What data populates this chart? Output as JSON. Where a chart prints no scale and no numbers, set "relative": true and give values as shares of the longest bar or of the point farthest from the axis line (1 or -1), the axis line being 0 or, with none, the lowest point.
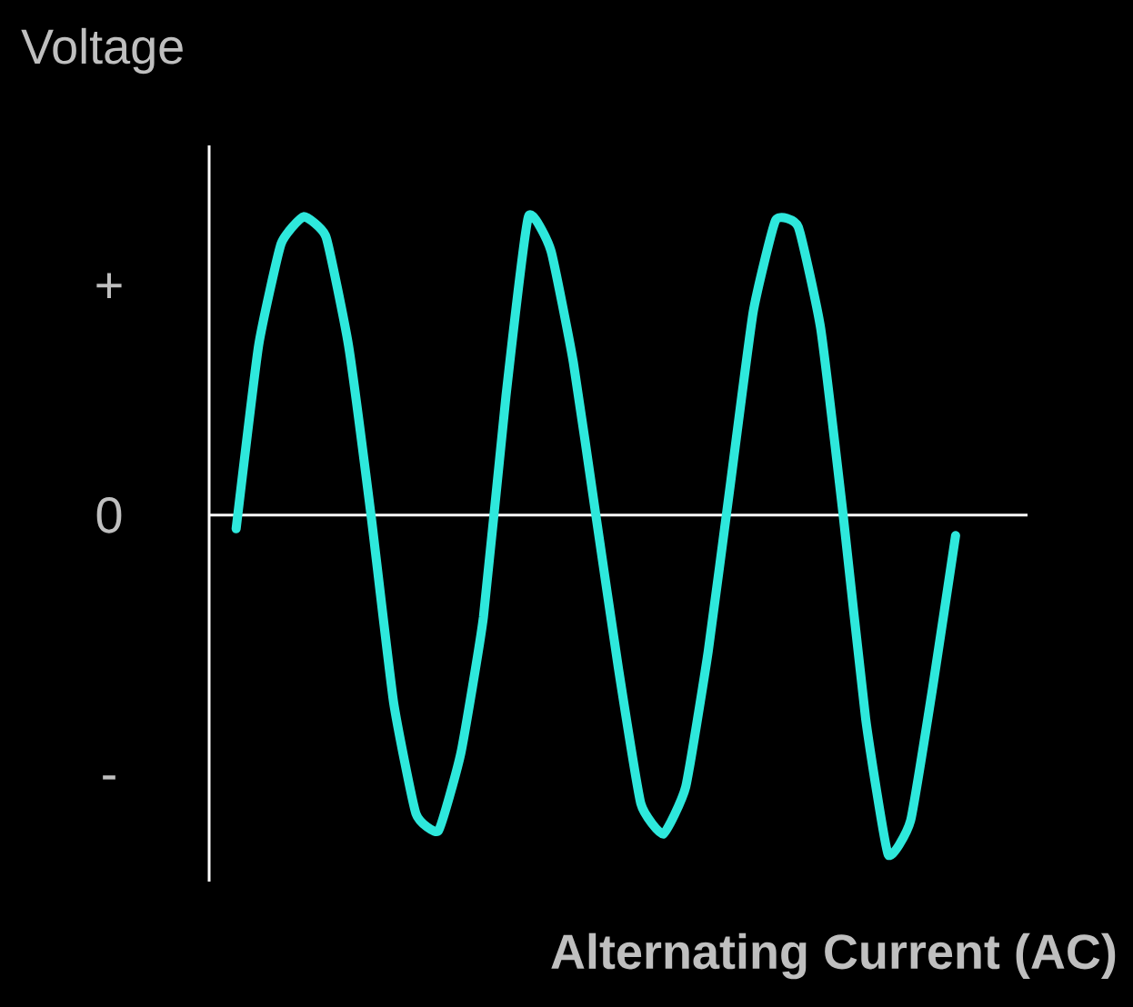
{
  "chart_data": {
    "type": "line",
    "relative": true,
    "ylabel": "Voltage",
    "xlabel": "Alternating Current (AC)",
    "annotations": [
      "+",
      "0",
      "-"
    ],
    "categories": [
      null,
      null,
      null,
      null,
      null,
      null,
      null,
      null,
      null,
      null,
      null,
      null,
      null,
      null,
      null,
      null,
      null,
      null,
      null,
      null,
      null,
      null,
      null,
      null,
      null,
      null,
      null,
      null,
      null,
      null,
      null,
      null,
      null
    ],
    "series": [
      {
        "color": "#2ee8dc",
        "values": [
          -0.04,
          0.5,
          0.8,
          0.88,
          0.82,
          0.5,
          0.0,
          -0.55,
          -0.88,
          -0.93,
          -0.7,
          -0.3,
          0.35,
          0.88,
          0.78,
          0.45,
          0.0,
          -0.45,
          -0.85,
          -0.94,
          -0.8,
          -0.4,
          0.1,
          0.6,
          0.87,
          0.85,
          0.55,
          0.0,
          -0.6,
          -1,
          -0.9,
          -0.5,
          -0.06
        ]
      }
    ],
    "marker": "none",
    "line_style": "solid"
  }
}
